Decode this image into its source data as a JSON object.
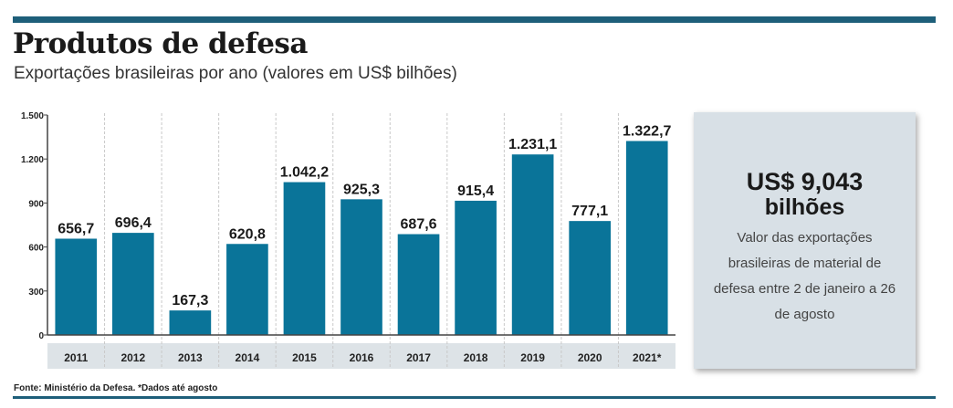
{
  "header": {
    "title": "Produtos de defesa",
    "subtitle": "Exportações brasileiras por ano (valores em US$ bilhões)"
  },
  "callout": {
    "value": "US$ 9,043",
    "unit": "bilhões",
    "text": "Valor das exportações brasileiras de material de defesa entre 2 de janeiro a 26 de agosto"
  },
  "footer": {
    "source": "Fonte: Ministério da Defesa. *Dados até agosto"
  },
  "colors": {
    "bar": "#0a7499",
    "rule": "#1e5f7a",
    "axis_band": "#dde3e7",
    "callout_bg": "#d8e0e6"
  },
  "chart_data": {
    "type": "bar",
    "title": "Produtos de defesa",
    "subtitle": "Exportações brasileiras por ano (valores em US$ bilhões)",
    "categories": [
      "2011",
      "2012",
      "2013",
      "2014",
      "2015",
      "2016",
      "2017",
      "2018",
      "2019",
      "2020",
      "2021*"
    ],
    "values": [
      656.7,
      696.4,
      167.3,
      620.8,
      1042.2,
      925.3,
      687.6,
      915.4,
      1231.1,
      777.1,
      1322.7
    ],
    "data_labels": [
      "656,7",
      "696,4",
      "167,3",
      "620,8",
      "1.042,2",
      "925,3",
      "687,6",
      "915,4",
      "1.231,1",
      "777,1",
      "1.322,7"
    ],
    "yticks": [
      0,
      300,
      600,
      900,
      1200,
      1500
    ],
    "ytick_labels": [
      "0",
      "300",
      "600",
      "900",
      "1.200",
      "1.500"
    ],
    "ylim": [
      0,
      1500
    ],
    "xlabel": "",
    "ylabel": "",
    "grid": "vertical separators",
    "legend": "none"
  }
}
